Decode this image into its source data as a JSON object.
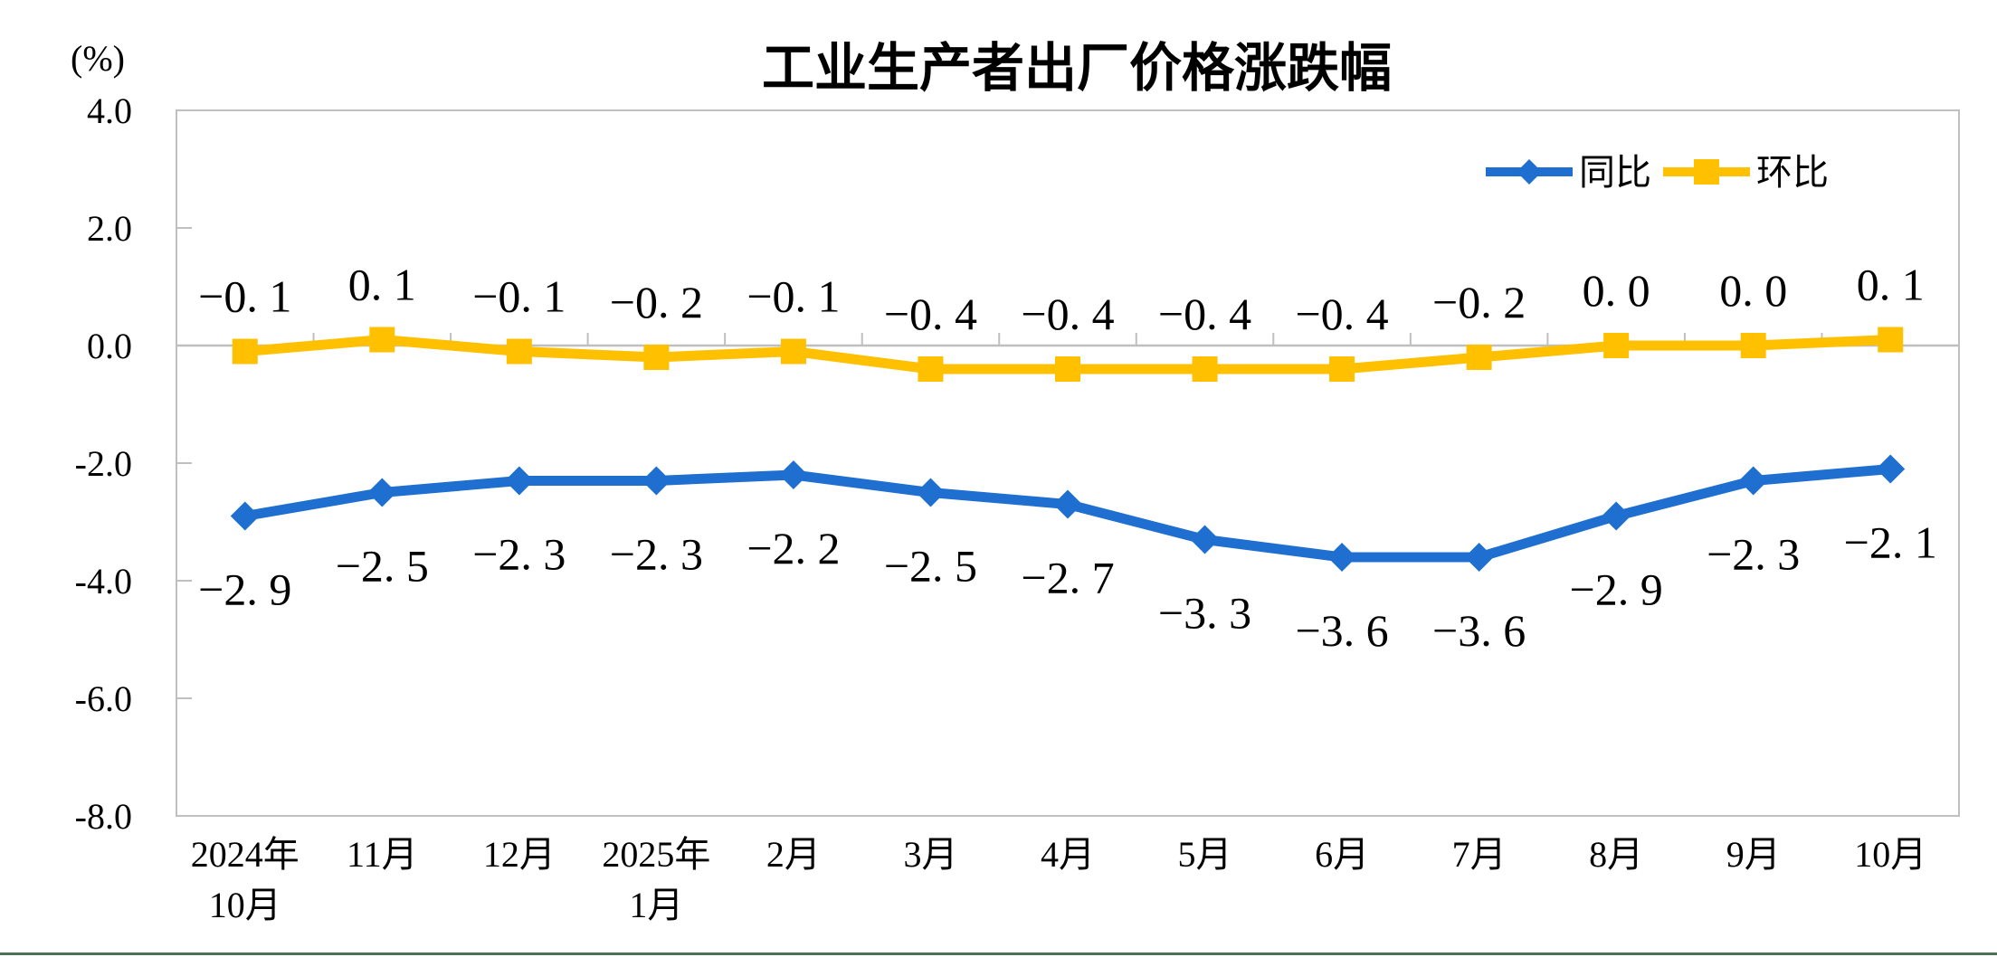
{
  "page": {
    "background": "#FFFFFF",
    "divider_color": "#4C7157"
  },
  "chart_data": {
    "type": "line",
    "title": "工业生产者出厂价格涨跌幅",
    "unit_label": "(%)",
    "categories": [
      [
        "2024年",
        "10月"
      ],
      [
        "11月"
      ],
      [
        "12月"
      ],
      [
        "2025年",
        "1月"
      ],
      [
        "2月"
      ],
      [
        "3月"
      ],
      [
        "4月"
      ],
      [
        "5月"
      ],
      [
        "6月"
      ],
      [
        "7月"
      ],
      [
        "8月"
      ],
      [
        "9月"
      ],
      [
        "10月"
      ]
    ],
    "series": [
      {
        "name": "同比",
        "color": "#1F6FD1",
        "marker": "diamond",
        "label_position": "below",
        "values": [
          -2.9,
          -2.5,
          -2.3,
          -2.3,
          -2.2,
          -2.5,
          -2.7,
          -3.3,
          -3.6,
          -3.6,
          -2.9,
          -2.3,
          -2.1
        ],
        "labels": [
          "−2. 9",
          "−2. 5",
          "−2. 3",
          "−2. 3",
          "−2. 2",
          "−2. 5",
          "−2. 7",
          "−3. 3",
          "−3. 6",
          "−3. 6",
          "−2. 9",
          "−2. 3",
          "−2. 1"
        ]
      },
      {
        "name": "环比",
        "color": "#FFC000",
        "marker": "square",
        "label_position": "above",
        "values": [
          -0.1,
          0.1,
          -0.1,
          -0.2,
          -0.1,
          -0.4,
          -0.4,
          -0.4,
          -0.4,
          -0.2,
          0.0,
          0.0,
          0.1
        ],
        "labels": [
          "−0. 1",
          "0. 1",
          "−0. 1",
          "−0. 2",
          "−0. 1",
          "−0. 4",
          "−0. 4",
          "−0. 4",
          "−0. 4",
          "−0. 2",
          "0. 0",
          "0. 0",
          "0. 1"
        ]
      }
    ],
    "ylim": [
      -8.0,
      4.0
    ],
    "yticks": [
      4.0,
      2.0,
      0.0,
      -2.0,
      -4.0,
      -6.0,
      -8.0
    ],
    "ytick_labels": [
      "4.0",
      "2.0",
      "0.0",
      "-2.0",
      "-4.0",
      "-6.0",
      "-8.0"
    ],
    "grid": "zero-baseline-only",
    "legend_position": "top-right-inside",
    "axis_color": "#BFBFBF",
    "text_color": "#000000"
  }
}
